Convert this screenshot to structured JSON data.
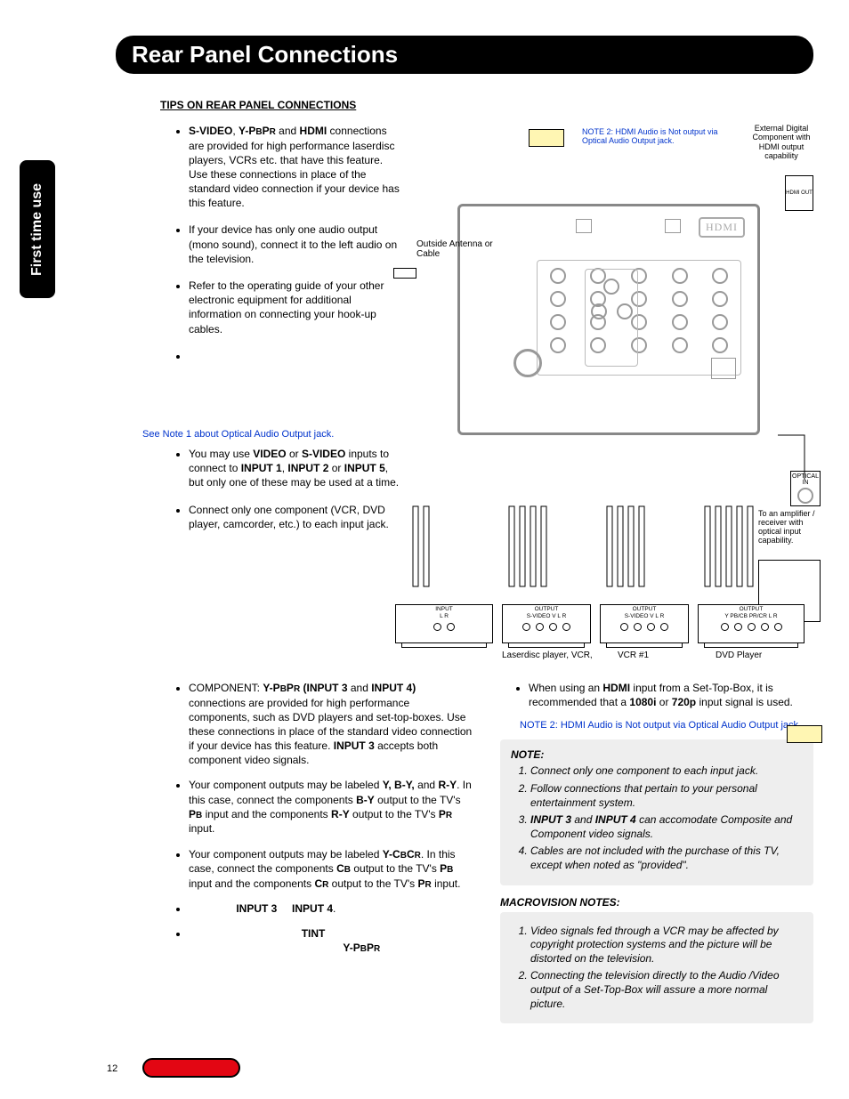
{
  "page": {
    "title": "Rear Panel Connections",
    "side_tab": "First time use",
    "page_number": "12"
  },
  "headings": {
    "tips": "Tips on Rear Panel Connections",
    "macrovision": "MACROVISION NOTES:"
  },
  "tips_left": [
    "<b>S-VIDEO</b>, <b>Y-P<small>B</small>P<small>R</small></b> and <b>HDMI</b> connections are provided for high performance laserdisc players, VCRs etc. that have this feature. Use these connections in place of the standard video connection if your device has this feature.",
    "If your device has only one audio output (mono sound), connect it to the left audio on the television.",
    "Refer to the operating guide of your other electronic equipment for additional information on connecting your hook-up cables.",
    ""
  ],
  "note1_link": "See Note 1 about Optical Audio Output jack.",
  "tips_left2": [
    "You may use <b>VIDEO</b> or <b>S-VIDEO</b> inputs to connect to <b>INPUT 1</b>, <b>INPUT 2</b> or <b>INPUT 5</b>, but only one of these may be used at a time.",
    "Connect only one component (VCR, DVD player, camcorder, etc.) to each input jack."
  ],
  "tips_wide": [
    "COMPONENT: <b>Y-P<small>B</small>P<small>R</small> (INPUT 3</b> and <b>INPUT 4)</b> connections are provided for high performance components, such as DVD players and set-top-boxes. Use these connections in place of the standard video connection if your device has this feature. <b>INPUT 3</b> accepts both component video signals.",
    "Your component outputs may be labeled <b>Y, B-Y,</b> and <b>R-Y</b>. In this case, connect the components <b>B-Y</b> output to the TV's <b>P<small>B</small></b> input and the components <b>R-Y</b> output to the TV's <b>P<small>R</small></b> input.",
    "Your component outputs may be labeled <b>Y-C<small>B</small>C<small>R</small></b>. In this case, connect the components <b>C<small>B</small></b> output to the TV's <b>P<small>B</small></b> input and the components <b>C<small>R</small></b> output to the TV's <b>P<small>R</small></b> input.",
    "&nbsp;&nbsp;&nbsp;&nbsp;&nbsp;&nbsp;&nbsp;&nbsp;&nbsp;&nbsp;&nbsp;&nbsp;&nbsp;&nbsp;&nbsp;&nbsp;<b>INPUT 3</b>&nbsp;&nbsp;&nbsp;&nbsp;&nbsp;<b>INPUT 4</b>.",
    "&nbsp;&nbsp;&nbsp;&nbsp;&nbsp;&nbsp;&nbsp;&nbsp;&nbsp;&nbsp;&nbsp;&nbsp;&nbsp;&nbsp;&nbsp;&nbsp;&nbsp;&nbsp;&nbsp;&nbsp;&nbsp;&nbsp;&nbsp;&nbsp;&nbsp;&nbsp;&nbsp;&nbsp;&nbsp;&nbsp;&nbsp;&nbsp;&nbsp;&nbsp;&nbsp;&nbsp;&nbsp;&nbsp;<b>TINT</b><br>&nbsp;&nbsp;&nbsp;&nbsp;&nbsp;&nbsp;&nbsp;&nbsp;&nbsp;&nbsp;&nbsp;&nbsp;&nbsp;&nbsp;&nbsp;&nbsp;&nbsp;&nbsp;&nbsp;&nbsp;&nbsp;&nbsp;&nbsp;&nbsp;&nbsp;&nbsp;&nbsp;&nbsp;&nbsp;&nbsp;&nbsp;&nbsp;&nbsp;&nbsp;&nbsp;&nbsp;&nbsp;&nbsp;&nbsp;&nbsp;&nbsp;&nbsp;&nbsp;&nbsp;&nbsp;&nbsp;&nbsp;&nbsp;&nbsp;&nbsp;&nbsp;&nbsp;<b>Y-P<small>B</small>P<small>R</small></b>"
  ],
  "right_bullet": "When using an <b>HDMI</b> input from a Set-Top-Box, it is recommended that a <b>1080i</b> or <b>720p</b> input signal is used.",
  "note2_inline": "NOTE 2: HDMI Audio is Not output via Optical Audio Output jack.",
  "note_box": {
    "title": "NOTE:",
    "items": [
      "Connect only one component to each input jack.",
      "Follow connections that pertain to your personal entertainment system.",
      "<b>INPUT 3</b> and <b>INPUT 4</b> can accomodate Composite and Component video signals.",
      "Cables are not included with the purchase of this TV, except when noted as \"provided\"."
    ]
  },
  "macrovision": [
    "Video signals fed through a VCR may be affected by copyright protection systems and the picture will be distorted on the television.",
    "Connecting the television directly to the Audio /Video output of a Set-Top-Box will assure a more normal picture."
  ],
  "diagram": {
    "ext_component": "External Digital Component with HDMI output capability",
    "note2_top": "NOTE 2: HDMI Audio is Not output via Optical Audio Output jack.",
    "hdmi_out": "HDMI OUT",
    "antenna_label": "Outside Antenna or Cable",
    "optical_in": "OPTICAL IN",
    "amp_note": "To an amplifier / receiver with optical input capability.",
    "devices": {
      "a": {
        "caption": "",
        "jacks": "L   R",
        "header": "INPUT"
      },
      "b": {
        "caption": "Laserdisc player, VCR,",
        "jacks": "S-VIDEO V   L   R",
        "header": "OUTPUT"
      },
      "c": {
        "caption": "VCR #1",
        "jacks": "S-VIDEO V   L   R",
        "header": "OUTPUT"
      },
      "d": {
        "caption": "DVD Player",
        "jacks": "Y  PB/CB  PR/CR  L   R",
        "header": "OUTPUT"
      }
    }
  },
  "colors": {
    "note_blue": "#0033cc",
    "title_bg": "#000000",
    "red_lozenge": "#e30613",
    "yellow_chip": "#fff6b3",
    "note_box_bg": "#eeeeee"
  }
}
